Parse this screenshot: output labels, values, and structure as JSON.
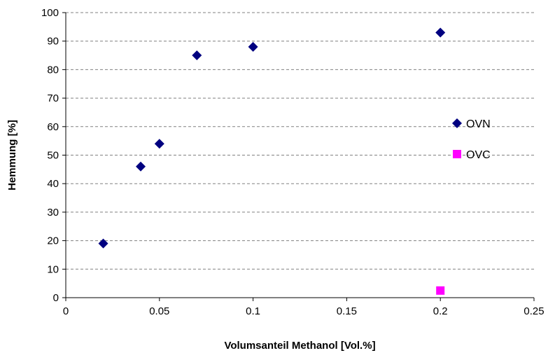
{
  "chart_data": {
    "type": "scatter",
    "title": "",
    "xlabel": "Volumsanteil Methanol [Vol.%]",
    "ylabel": "Hemmung [%]",
    "xlim": [
      0,
      0.25
    ],
    "ylim": [
      0,
      100
    ],
    "x_ticks": [
      0,
      0.05,
      0.1,
      0.15,
      0.2,
      0.25
    ],
    "x_tick_labels": [
      "0",
      "0.05",
      "0.1",
      "0.15",
      "0.2",
      "0.25"
    ],
    "y_ticks": [
      0,
      10,
      20,
      30,
      40,
      50,
      60,
      70,
      80,
      90,
      100
    ],
    "y_tick_labels": [
      "0",
      "10",
      "20",
      "30",
      "40",
      "50",
      "60",
      "70",
      "80",
      "90",
      "100"
    ],
    "grid": "horizontal dashed",
    "legend_position": "right",
    "series": [
      {
        "name": "OVN",
        "marker": "diamond",
        "color": "#000080",
        "points": [
          {
            "x": 0.02,
            "y": 19
          },
          {
            "x": 0.04,
            "y": 46
          },
          {
            "x": 0.05,
            "y": 54
          },
          {
            "x": 0.07,
            "y": 85
          },
          {
            "x": 0.1,
            "y": 88
          },
          {
            "x": 0.2,
            "y": 93
          }
        ]
      },
      {
        "name": "OVC",
        "marker": "square",
        "color": "#ff00ff",
        "points": [
          {
            "x": 0.2,
            "y": 2.5
          }
        ]
      }
    ]
  }
}
